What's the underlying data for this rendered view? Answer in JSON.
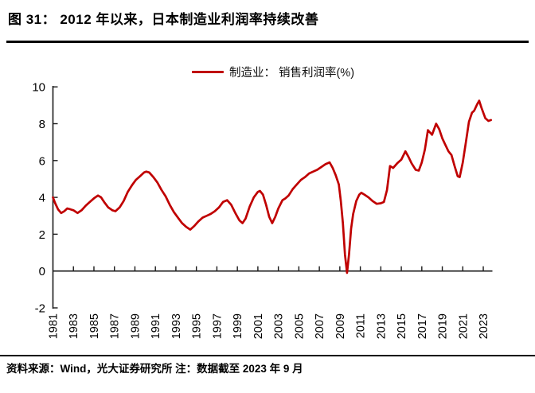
{
  "figure": {
    "title": "图 31：  2012 年以来，日本制造业利润率持续改善"
  },
  "legend": {
    "label": "制造业： 销售利润率(%)"
  },
  "colors": {
    "line": "#C00000",
    "axis": "#1a1a1a",
    "text": "#000000"
  },
  "chart_data": {
    "type": "line",
    "title": "制造业： 销售利润率(%)",
    "xlabel": "",
    "ylabel": "",
    "grid": false,
    "legend_position": "top-center",
    "ylim": [
      -2,
      10
    ],
    "xlim": [
      1981,
      2024
    ],
    "y_ticks": [
      -2,
      0,
      2,
      4,
      6,
      8,
      10
    ],
    "x_tick_years": [
      1983,
      1985,
      1987,
      1989,
      1991,
      1993,
      1995,
      1997,
      1999,
      2001,
      2003,
      2005,
      2007,
      2009,
      2011,
      2013,
      2015,
      2017,
      2019,
      2021,
      2023
    ],
    "x_tick_labels": [
      "1981",
      "1983",
      "1985",
      "1987",
      "1989",
      "1991",
      "1993",
      "1995",
      "1997",
      "1999",
      "2001",
      "2003",
      "2005",
      "2007",
      "2009",
      "2011",
      "2013",
      "2015",
      "2017",
      "2019",
      "2021",
      "2023"
    ],
    "x_label_years": [
      1981,
      1983,
      1985,
      1987,
      1989,
      1991,
      1993,
      1995,
      1997,
      1999,
      2001,
      2003,
      2005,
      2007,
      2009,
      2011,
      2013,
      2015,
      2017,
      2019,
      2021,
      2023
    ],
    "series": [
      {
        "name": "制造业： 销售利润率(%)",
        "color": "#C00000",
        "points": [
          [
            1981.0,
            4.0
          ],
          [
            1981.2,
            3.7
          ],
          [
            1981.5,
            3.35
          ],
          [
            1981.8,
            3.15
          ],
          [
            1982.1,
            3.25
          ],
          [
            1982.4,
            3.4
          ],
          [
            1982.7,
            3.35
          ],
          [
            1983.0,
            3.3
          ],
          [
            1983.4,
            3.15
          ],
          [
            1983.8,
            3.3
          ],
          [
            1984.2,
            3.55
          ],
          [
            1984.7,
            3.8
          ],
          [
            1985.0,
            3.95
          ],
          [
            1985.4,
            4.1
          ],
          [
            1985.7,
            4.0
          ],
          [
            1986.0,
            3.75
          ],
          [
            1986.4,
            3.45
          ],
          [
            1986.8,
            3.3
          ],
          [
            1987.1,
            3.25
          ],
          [
            1987.5,
            3.45
          ],
          [
            1987.9,
            3.8
          ],
          [
            1988.3,
            4.3
          ],
          [
            1988.7,
            4.65
          ],
          [
            1989.1,
            4.95
          ],
          [
            1989.5,
            5.15
          ],
          [
            1989.9,
            5.35
          ],
          [
            1990.1,
            5.4
          ],
          [
            1990.4,
            5.35
          ],
          [
            1990.8,
            5.1
          ],
          [
            1991.2,
            4.8
          ],
          [
            1991.6,
            4.4
          ],
          [
            1992.0,
            4.05
          ],
          [
            1992.4,
            3.6
          ],
          [
            1992.8,
            3.2
          ],
          [
            1993.2,
            2.9
          ],
          [
            1993.6,
            2.6
          ],
          [
            1994.0,
            2.4
          ],
          [
            1994.4,
            2.25
          ],
          [
            1994.8,
            2.45
          ],
          [
            1995.2,
            2.7
          ],
          [
            1995.6,
            2.9
          ],
          [
            1996.0,
            3.0
          ],
          [
            1996.4,
            3.1
          ],
          [
            1996.8,
            3.25
          ],
          [
            1997.2,
            3.45
          ],
          [
            1997.6,
            3.75
          ],
          [
            1998.0,
            3.85
          ],
          [
            1998.4,
            3.6
          ],
          [
            1998.8,
            3.15
          ],
          [
            1999.2,
            2.75
          ],
          [
            1999.5,
            2.6
          ],
          [
            1999.8,
            2.85
          ],
          [
            2000.2,
            3.5
          ],
          [
            2000.6,
            4.0
          ],
          [
            2001.0,
            4.3
          ],
          [
            2001.2,
            4.35
          ],
          [
            2001.5,
            4.15
          ],
          [
            2001.8,
            3.6
          ],
          [
            2002.1,
            2.95
          ],
          [
            2002.4,
            2.6
          ],
          [
            2002.7,
            2.95
          ],
          [
            2003.0,
            3.4
          ],
          [
            2003.4,
            3.85
          ],
          [
            2003.7,
            3.95
          ],
          [
            2004.0,
            4.1
          ],
          [
            2004.4,
            4.45
          ],
          [
            2004.8,
            4.7
          ],
          [
            2005.2,
            4.95
          ],
          [
            2005.6,
            5.1
          ],
          [
            2006.0,
            5.3
          ],
          [
            2006.4,
            5.4
          ],
          [
            2006.8,
            5.5
          ],
          [
            2007.2,
            5.65
          ],
          [
            2007.6,
            5.8
          ],
          [
            2008.0,
            5.9
          ],
          [
            2008.3,
            5.6
          ],
          [
            2008.6,
            5.2
          ],
          [
            2008.9,
            4.7
          ],
          [
            2009.1,
            3.8
          ],
          [
            2009.3,
            2.6
          ],
          [
            2009.5,
            0.9
          ],
          [
            2009.7,
            -0.1
          ],
          [
            2009.9,
            0.9
          ],
          [
            2010.1,
            2.3
          ],
          [
            2010.3,
            3.1
          ],
          [
            2010.6,
            3.8
          ],
          [
            2010.9,
            4.15
          ],
          [
            2011.1,
            4.25
          ],
          [
            2011.4,
            4.15
          ],
          [
            2011.8,
            4.0
          ],
          [
            2012.2,
            3.8
          ],
          [
            2012.6,
            3.65
          ],
          [
            2013.0,
            3.68
          ],
          [
            2013.3,
            3.75
          ],
          [
            2013.6,
            4.4
          ],
          [
            2013.9,
            5.7
          ],
          [
            2014.2,
            5.6
          ],
          [
            2014.6,
            5.85
          ],
          [
            2015.0,
            6.05
          ],
          [
            2015.4,
            6.5
          ],
          [
            2015.7,
            6.2
          ],
          [
            2016.0,
            5.85
          ],
          [
            2016.4,
            5.5
          ],
          [
            2016.7,
            5.45
          ],
          [
            2017.0,
            5.9
          ],
          [
            2017.3,
            6.6
          ],
          [
            2017.6,
            7.65
          ],
          [
            2018.0,
            7.4
          ],
          [
            2018.4,
            8.0
          ],
          [
            2018.7,
            7.7
          ],
          [
            2019.0,
            7.2
          ],
          [
            2019.3,
            6.85
          ],
          [
            2019.6,
            6.5
          ],
          [
            2019.9,
            6.3
          ],
          [
            2020.2,
            5.7
          ],
          [
            2020.5,
            5.15
          ],
          [
            2020.7,
            5.1
          ],
          [
            2021.0,
            5.9
          ],
          [
            2021.3,
            7.0
          ],
          [
            2021.6,
            8.1
          ],
          [
            2021.9,
            8.6
          ],
          [
            2022.1,
            8.7
          ],
          [
            2022.4,
            9.05
          ],
          [
            2022.6,
            9.25
          ],
          [
            2022.8,
            8.9
          ],
          [
            2023.0,
            8.6
          ],
          [
            2023.2,
            8.3
          ],
          [
            2023.5,
            8.15
          ],
          [
            2023.75,
            8.2
          ]
        ]
      }
    ]
  },
  "footer": {
    "source_note": "资料来源：Wind，光大证券研究所 注：数据截至 2023 年 9 月"
  }
}
